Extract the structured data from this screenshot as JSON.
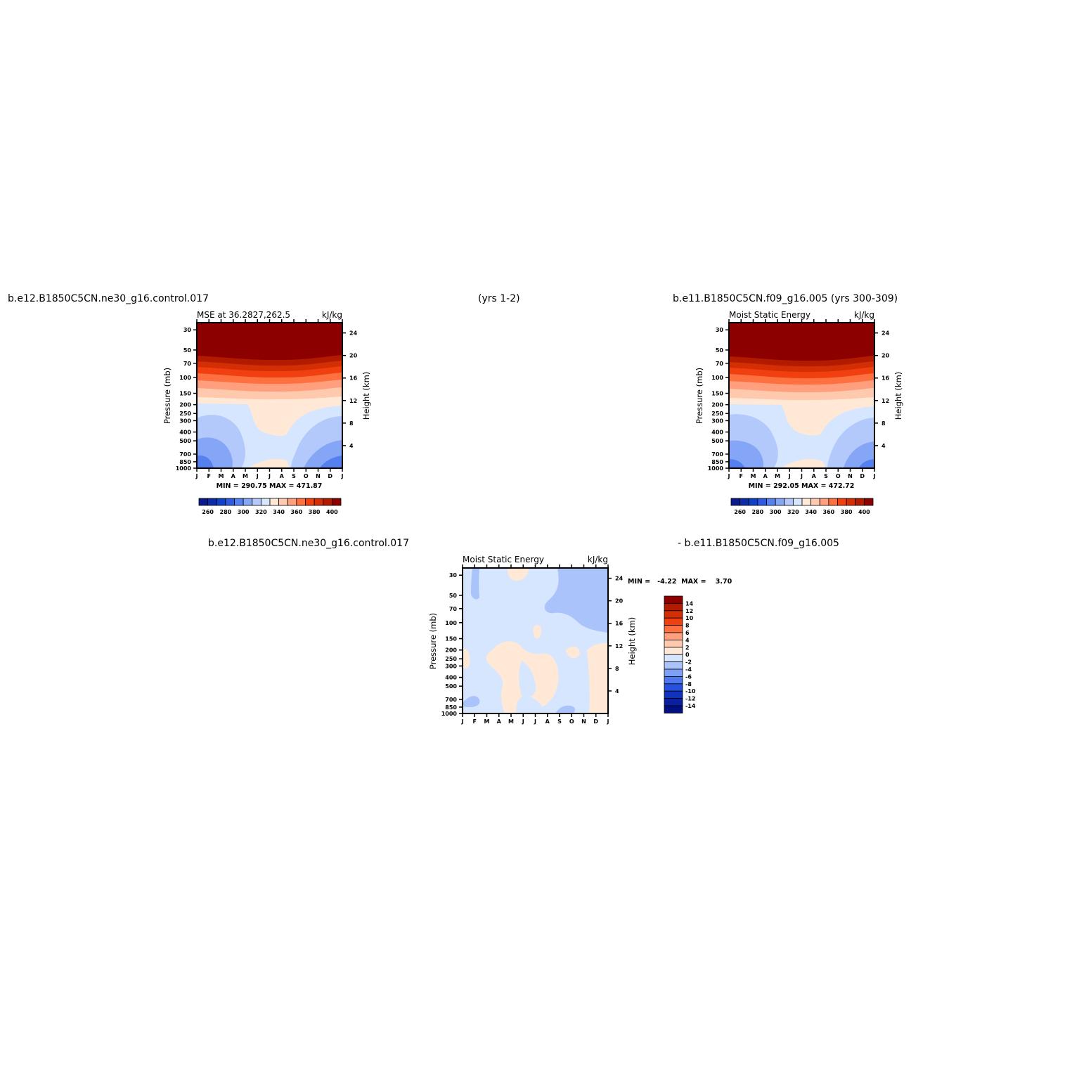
{
  "header": {
    "left_case": "b.e12.B1850C5CN.ne30_g16.control.017",
    "left_years": "(yrs 1-2)",
    "right_case": "b.e11.B1850C5CN.f09_g16.005 (yrs 300-309)",
    "diff_left": "b.e12.B1850C5CN.ne30_g16.control.017",
    "diff_right": "- b.e11.B1850C5CN.f09_g16.005"
  },
  "colors": {
    "abs_levels": [
      "#0a1a8c",
      "#0b2ca8",
      "#1040c8",
      "#2d5ae0",
      "#5580f0",
      "#85a6f6",
      "#b4c9fb",
      "#d6e6ff",
      "#ffe9d6",
      "#ffc9ae",
      "#ff9f7d",
      "#ff7040",
      "#f04010",
      "#d42e05",
      "#b31b00",
      "#8c0000"
    ],
    "diff_levels": [
      "#001080",
      "#0a1ea0",
      "#0f32c0",
      "#2650e0",
      "#4f78ef",
      "#7e9ff6",
      "#abc3fb",
      "#d6e6ff",
      "#ffe9d6",
      "#ffc9ae",
      "#ff9f7d",
      "#ff7040",
      "#f04010",
      "#d42e05",
      "#b31b00",
      "#8c0000"
    ]
  },
  "chart_data": [
    {
      "type": "heatmap",
      "title": "MSE at 36.2827,262.5",
      "units": "kJ/kg",
      "ylabel": "Pressure (mb)",
      "ylabel_right": "Height (km)",
      "months": [
        "J",
        "F",
        "M",
        "A",
        "M",
        "J",
        "J",
        "A",
        "S",
        "O",
        "N",
        "D",
        "J"
      ],
      "pressure_ticks": [
        30,
        50,
        70,
        100,
        150,
        200,
        250,
        300,
        400,
        500,
        700,
        850,
        1000
      ],
      "height_ticks": [
        4,
        8,
        12,
        16,
        20,
        24
      ],
      "ylim": [
        1000,
        25
      ],
      "min": 290.75,
      "max": 471.87,
      "stats_text": "MIN = 290.75  MAX = 471.87",
      "colorbar_labels": [
        "260",
        "280",
        "300",
        "320",
        "340",
        "360",
        "380",
        "400"
      ]
    },
    {
      "type": "heatmap",
      "title": "Moist Static Energy",
      "units": "kJ/kg",
      "ylabel": "Pressure (mb)",
      "ylabel_right": "Height (km)",
      "months": [
        "J",
        "F",
        "M",
        "A",
        "M",
        "J",
        "J",
        "A",
        "S",
        "O",
        "N",
        "D",
        "J"
      ],
      "pressure_ticks": [
        30,
        50,
        70,
        100,
        150,
        200,
        250,
        300,
        400,
        500,
        700,
        850,
        1000
      ],
      "height_ticks": [
        4,
        8,
        12,
        16,
        20,
        24
      ],
      "ylim": [
        1000,
        25
      ],
      "min": 292.05,
      "max": 472.72,
      "stats_text": "MIN = 292.05  MAX = 472.72",
      "colorbar_labels": [
        "260",
        "280",
        "300",
        "320",
        "340",
        "360",
        "380",
        "400"
      ]
    },
    {
      "type": "heatmap",
      "title": "Moist Static Energy",
      "units": "kJ/kg",
      "ylabel": "Pressure (mb)",
      "ylabel_right": "Height (km)",
      "months": [
        "J",
        "F",
        "M",
        "A",
        "M",
        "J",
        "J",
        "A",
        "S",
        "O",
        "N",
        "D",
        "J"
      ],
      "pressure_ticks": [
        30,
        50,
        70,
        100,
        150,
        200,
        250,
        300,
        400,
        500,
        700,
        850,
        1000
      ],
      "height_ticks": [
        4,
        8,
        12,
        16,
        20,
        24
      ],
      "ylim": [
        1000,
        25
      ],
      "min": -4.22,
      "max": 3.7,
      "stats_text": "MIN =   -4.22  MAX =    3.70",
      "colorbar_labels": [
        "14",
        "12",
        "10",
        "8",
        "6",
        "4",
        "2",
        "0",
        "-2",
        "-4",
        "-6",
        "-8",
        "-10",
        "-12",
        "-14"
      ]
    }
  ]
}
